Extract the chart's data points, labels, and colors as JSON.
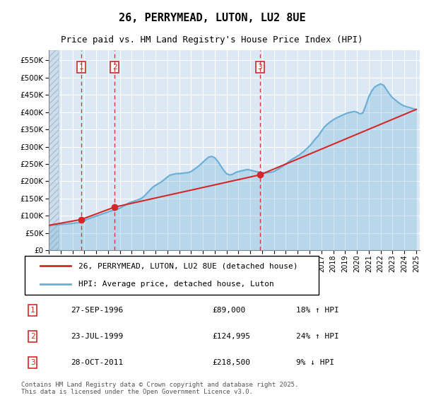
{
  "title": "26, PERRYMEAD, LUTON, LU2 8UE",
  "subtitle": "Price paid vs. HM Land Registry's House Price Index (HPI)",
  "legend_line1": "26, PERRYMEAD, LUTON, LU2 8UE (detached house)",
  "legend_line2": "HPI: Average price, detached house, Luton",
  "footer": "Contains HM Land Registry data © Crown copyright and database right 2025.\nThis data is licensed under the Open Government Licence v3.0.",
  "hpi_color": "#6baed6",
  "price_color": "#d62728",
  "vline_color": "#d62728",
  "background_color": "#dce9f5",
  "hatch_color": "#c0d0e0",
  "ylim": [
    0,
    580000
  ],
  "yticks": [
    0,
    50000,
    100000,
    150000,
    200000,
    250000,
    300000,
    350000,
    400000,
    450000,
    500000,
    550000
  ],
  "sale_markers": [
    {
      "num": 1,
      "date": "27-SEP-1996",
      "price": 89000,
      "hpi_pct": "18% ↑ HPI",
      "x_year": 1996.74
    },
    {
      "num": 2,
      "date": "23-JUL-1999",
      "price": 124995,
      "hpi_pct": "24% ↑ HPI",
      "x_year": 1999.56
    },
    {
      "num": 3,
      "date": "28-OCT-2011",
      "price": 218500,
      "hpi_pct": "9% ↓ HPI",
      "x_year": 2011.83
    }
  ],
  "hpi_x": [
    1994.0,
    1994.25,
    1994.5,
    1994.75,
    1995.0,
    1995.25,
    1995.5,
    1995.75,
    1996.0,
    1996.25,
    1996.5,
    1996.75,
    1997.0,
    1997.25,
    1997.5,
    1997.75,
    1998.0,
    1998.25,
    1998.5,
    1998.75,
    1999.0,
    1999.25,
    1999.5,
    1999.75,
    2000.0,
    2000.25,
    2000.5,
    2000.75,
    2001.0,
    2001.25,
    2001.5,
    2001.75,
    2002.0,
    2002.25,
    2002.5,
    2002.75,
    2003.0,
    2003.25,
    2003.5,
    2003.75,
    2004.0,
    2004.25,
    2004.5,
    2004.75,
    2005.0,
    2005.25,
    2005.5,
    2005.75,
    2006.0,
    2006.25,
    2006.5,
    2006.75,
    2007.0,
    2007.25,
    2007.5,
    2007.75,
    2008.0,
    2008.25,
    2008.5,
    2008.75,
    2009.0,
    2009.25,
    2009.5,
    2009.75,
    2010.0,
    2010.25,
    2010.5,
    2010.75,
    2011.0,
    2011.25,
    2011.5,
    2011.75,
    2012.0,
    2012.25,
    2012.5,
    2012.75,
    2013.0,
    2013.25,
    2013.5,
    2013.75,
    2014.0,
    2014.25,
    2014.5,
    2014.75,
    2015.0,
    2015.25,
    2015.5,
    2015.75,
    2016.0,
    2016.25,
    2016.5,
    2016.75,
    2017.0,
    2017.25,
    2017.5,
    2017.75,
    2018.0,
    2018.25,
    2018.5,
    2018.75,
    2019.0,
    2019.25,
    2019.5,
    2019.75,
    2020.0,
    2020.25,
    2020.5,
    2020.75,
    2021.0,
    2021.25,
    2021.5,
    2021.75,
    2022.0,
    2022.25,
    2022.5,
    2022.75,
    2023.0,
    2023.25,
    2023.5,
    2023.75,
    2024.0,
    2024.25,
    2024.5,
    2024.75,
    2025.0
  ],
  "hpi_y": [
    72000,
    73000,
    73500,
    74000,
    75000,
    75500,
    76000,
    77000,
    78000,
    79000,
    80000,
    82000,
    86000,
    90000,
    93000,
    96000,
    99000,
    102000,
    105000,
    108000,
    111000,
    114000,
    116000,
    118000,
    122000,
    127000,
    132000,
    137000,
    140000,
    143000,
    146000,
    149000,
    155000,
    164000,
    173000,
    182000,
    188000,
    193000,
    198000,
    205000,
    212000,
    218000,
    220000,
    222000,
    222000,
    223000,
    224000,
    225000,
    228000,
    234000,
    240000,
    247000,
    255000,
    263000,
    270000,
    272000,
    268000,
    258000,
    245000,
    232000,
    222000,
    218000,
    220000,
    225000,
    228000,
    230000,
    232000,
    234000,
    232000,
    230000,
    228000,
    226000,
    225000,
    224000,
    225000,
    226000,
    228000,
    233000,
    238000,
    244000,
    250000,
    257000,
    263000,
    268000,
    273000,
    279000,
    286000,
    294000,
    302000,
    312000,
    323000,
    332000,
    345000,
    357000,
    365000,
    372000,
    378000,
    383000,
    387000,
    391000,
    395000,
    398000,
    400000,
    402000,
    400000,
    395000,
    398000,
    420000,
    445000,
    462000,
    473000,
    478000,
    482000,
    478000,
    465000,
    452000,
    442000,
    435000,
    428000,
    422000,
    418000,
    415000,
    413000,
    410000,
    408000
  ],
  "price_x": [
    1994.0,
    1996.74,
    1999.56,
    2011.83,
    2025.0
  ],
  "price_y": [
    72000,
    89000,
    124995,
    218500,
    408000
  ],
  "xlim_left": 1994.0,
  "xlim_right": 2025.3,
  "xticks": [
    1994,
    1995,
    1996,
    1997,
    1998,
    1999,
    2000,
    2001,
    2002,
    2003,
    2004,
    2005,
    2006,
    2007,
    2008,
    2009,
    2010,
    2011,
    2012,
    2013,
    2014,
    2015,
    2016,
    2017,
    2018,
    2019,
    2020,
    2021,
    2022,
    2023,
    2024,
    2025
  ]
}
